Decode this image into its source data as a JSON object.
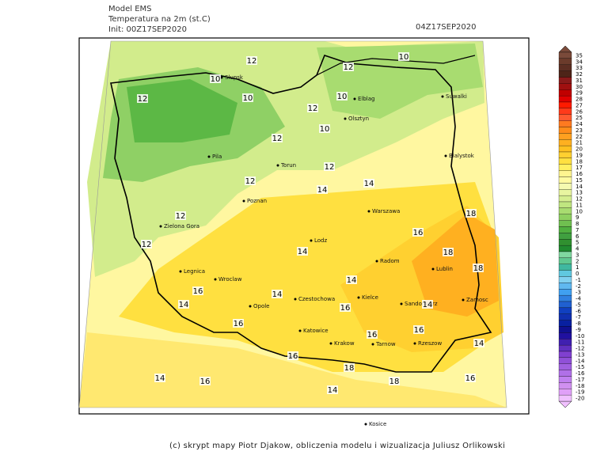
{
  "header": {
    "model": "Model EMS",
    "variable": "Temperatura na 2m (st.C)",
    "init": "Init: 00Z17SEP2020",
    "valid": "04Z17SEP2020"
  },
  "colorbar": {
    "labels": [
      35,
      34,
      33,
      32,
      31,
      30,
      29,
      28,
      27,
      26,
      25,
      24,
      23,
      22,
      21,
      20,
      19,
      18,
      17,
      16,
      15,
      14,
      13,
      12,
      11,
      10,
      9,
      8,
      7,
      6,
      5,
      4,
      3,
      2,
      1,
      0,
      -1,
      -2,
      -3,
      -4,
      -5,
      -6,
      -7,
      -8,
      -9,
      -10,
      -11,
      -12,
      -13,
      -14,
      -15,
      -16,
      -17,
      -18,
      -19,
      -20
    ],
    "colors": [
      "#7a4a3a",
      "#6b3b2b",
      "#5c2e22",
      "#4e2418",
      "#8a1a1a",
      "#a01010",
      "#c00000",
      "#e00000",
      "#ff1a00",
      "#ff3a1a",
      "#ff5a30",
      "#ff7a20",
      "#ff8c1a",
      "#ffa020",
      "#ffb020",
      "#ffc020",
      "#ffd030",
      "#ffe040",
      "#fff060",
      "#fff590",
      "#fffaa0",
      "#f5fab0",
      "#e8f5a0",
      "#d5ee90",
      "#c0e680",
      "#a8dc70",
      "#8ed060",
      "#70c050",
      "#50b040",
      "#40a040",
      "#309030",
      "#208a30",
      "#80d8a0",
      "#60c890",
      "#40b8a0",
      "#60c8e0",
      "#80d0f0",
      "#60b8f0",
      "#40a0f0",
      "#3080e0",
      "#2060d0",
      "#1040c0",
      "#1030b0",
      "#0820a0",
      "#101090",
      "#2010a0",
      "#4020b0",
      "#6030c0",
      "#8040d0",
      "#9050d8",
      "#a060e0",
      "#b070e8",
      "#c080f0",
      "#d090f0",
      "#e0a0f8",
      "#f0c0ff"
    ]
  },
  "map": {
    "cities": [
      "Slupsk",
      "Elblag",
      "Olsztyn",
      "Suwalki",
      "Bialystok",
      "Pila",
      "Torun",
      "Poznan",
      "Warszawa",
      "Zielona Gora",
      "Lodz",
      "Radom",
      "Lublin",
      "Legnica",
      "Wroclaw",
      "Opole",
      "Czestochowa",
      "Kielce",
      "Sandomierz",
      "Zamosc",
      "Katowice",
      "Krakow",
      "Tarnow",
      "Rzeszow",
      "Kosice"
    ],
    "contour_labels": [
      12,
      10,
      12,
      10,
      12,
      10,
      12,
      10,
      10,
      12,
      12,
      14,
      12,
      14,
      16,
      18,
      12,
      12,
      14,
      18,
      18,
      14,
      16,
      14,
      14,
      16,
      16,
      14,
      16,
      16,
      18,
      16,
      18,
      14,
      14,
      16,
      14,
      16
    ]
  },
  "footer": "(c) skrypt mapy Piotr Djakow, obliczenia modelu i wizualizacja Juliusz Orlikowski"
}
